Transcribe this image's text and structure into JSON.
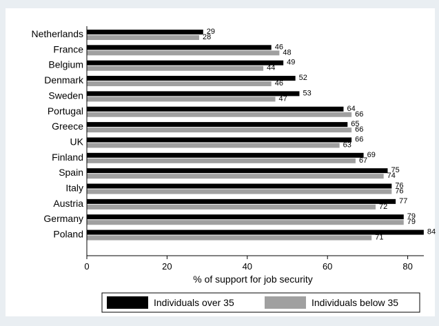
{
  "colors": {
    "background": "#e9eef2",
    "plot_area": "#ffffff",
    "series_over_35": "#000000",
    "series_below_35": "#a0a0a0"
  },
  "chart_data": {
    "type": "bar",
    "orientation": "horizontal",
    "title": "",
    "xlabel": "% of support for job security",
    "ylabel": "",
    "xlim": [
      0,
      85
    ],
    "xticks": [
      0,
      20,
      40,
      60,
      80
    ],
    "grid": false,
    "legend_position": "bottom",
    "categories": [
      "Netherlands",
      "France",
      "Belgium",
      "Denmark",
      "Sweden",
      "Portugal",
      "Greece",
      "UK",
      "Finland",
      "Spain",
      "Italy",
      "Austria",
      "Germany",
      "Poland"
    ],
    "series": [
      {
        "name": "Individuals over 35",
        "color": "#000000",
        "values": [
          29,
          46,
          49,
          52,
          53,
          64,
          65,
          66,
          69,
          75,
          76,
          77,
          79,
          84
        ]
      },
      {
        "name": "Individuals below 35",
        "color": "#a0a0a0",
        "values": [
          28,
          48,
          44,
          46,
          47,
          66,
          66,
          63,
          67,
          74,
          76,
          72,
          79,
          71
        ]
      }
    ]
  }
}
